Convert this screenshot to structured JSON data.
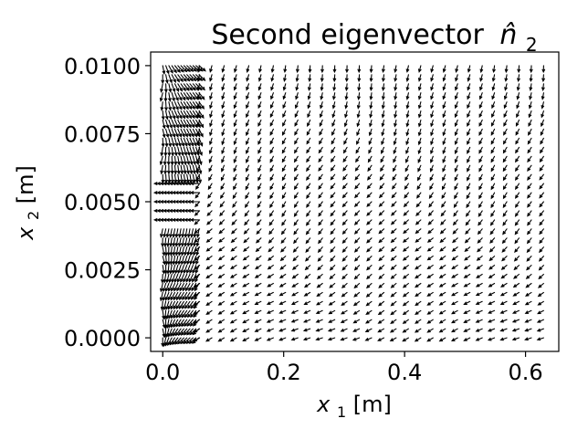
{
  "chart_data": {
    "type": "quiver",
    "title": "Second eigenvector",
    "title_symbol": "n̂",
    "title_symbol_sub": "2",
    "xlabel_var": "x",
    "xlabel_sub": "1",
    "xlabel_unit": "[m]",
    "ylabel_var": "x",
    "ylabel_sub": "2",
    "ylabel_unit": "[m]",
    "xlim": [
      -0.02,
      0.655
    ],
    "ylim": [
      -0.0005,
      0.0105
    ],
    "xticks": [
      0.0,
      0.2,
      0.4,
      0.6
    ],
    "xtick_labels": [
      "0.0",
      "0.2",
      "0.4",
      "0.6"
    ],
    "yticks": [
      0.0,
      0.0025,
      0.005,
      0.0075,
      0.01
    ],
    "ytick_labels": [
      "0.0000",
      "0.0025",
      "0.0050",
      "0.0075",
      "0.0100"
    ],
    "grid": false,
    "arrow_color": "#000000",
    "grid_x": {
      "start": 0.0,
      "stop": 0.63,
      "count": 32,
      "refine_below": 0.06,
      "refine_step": 0.005
    },
    "grid_y": {
      "start": 0.0,
      "stop": 0.01,
      "count": 31
    }
  }
}
